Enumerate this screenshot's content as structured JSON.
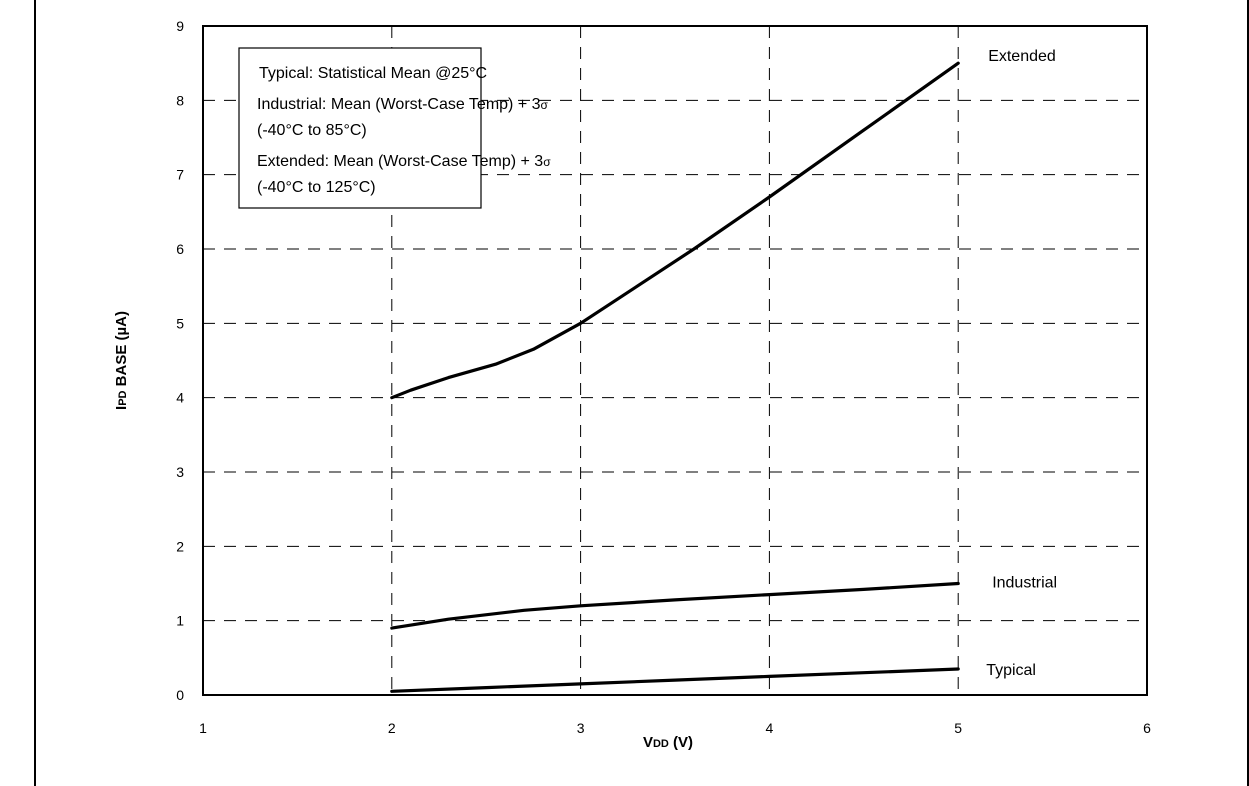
{
  "chart_data": {
    "type": "line",
    "xlabel": {
      "main": "V",
      "sub": "DD",
      "suffix": " (V)"
    },
    "ylabel": {
      "main": "I",
      "sub": "PD",
      "suffix": " BASE (µA)"
    },
    "xlim": [
      1,
      6
    ],
    "ylim": [
      0,
      9
    ],
    "x_ticks": [
      1,
      2,
      3,
      4,
      5,
      6
    ],
    "y_ticks": [
      0,
      1,
      2,
      3,
      4,
      5,
      6,
      7,
      8,
      9
    ],
    "grid": true,
    "legend": {
      "placement": "top-left",
      "lines": [
        {
          "text": "Typical: Statistical Mean @25°C",
          "sigma": ""
        },
        {
          "text": "Industrial: Mean (Worst-Case Temp) +  3",
          "sigma": "σ"
        },
        {
          "text": "(-40°C to 85°C)",
          "sigma": ""
        },
        {
          "text": "Extended: Mean (Worst-Case Temp) + 3",
          "sigma": "σ"
        },
        {
          "text": "(-40°C to 125°C)",
          "sigma": ""
        }
      ]
    },
    "series": [
      {
        "name": "Extended",
        "x": [
          2.0,
          2.1,
          2.3,
          2.55,
          2.75,
          3.0,
          3.3,
          3.6,
          4.0,
          4.5,
          5.0
        ],
        "y": [
          4.0,
          4.1,
          4.27,
          4.45,
          4.65,
          5.0,
          5.5,
          6.0,
          6.7,
          7.6,
          8.5
        ]
      },
      {
        "name": "Industrial",
        "x": [
          2.0,
          2.3,
          2.7,
          3.0,
          3.5,
          4.0,
          4.5,
          5.0
        ],
        "y": [
          0.9,
          1.02,
          1.14,
          1.2,
          1.28,
          1.35,
          1.42,
          1.5
        ]
      },
      {
        "name": "Typical",
        "x": [
          2.0,
          2.5,
          3.0,
          3.5,
          4.0,
          4.5,
          5.0
        ],
        "y": [
          0.05,
          0.1,
          0.15,
          0.2,
          0.25,
          0.3,
          0.35
        ]
      }
    ]
  }
}
